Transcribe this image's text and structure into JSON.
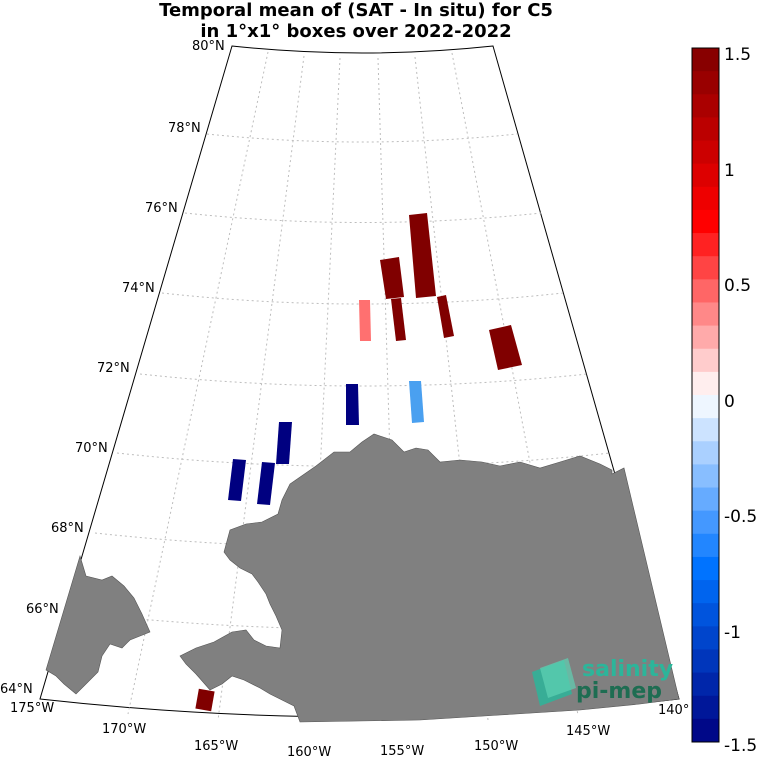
{
  "title": {
    "line1": "Temporal mean of (SAT - In situ) for C5",
    "line2": "in 1°x1° boxes over 2022-2022"
  },
  "lat_labels": [
    "80°N",
    "78°N",
    "76°N",
    "74°N",
    "72°N",
    "70°N",
    "68°N",
    "66°N",
    "64°N"
  ],
  "lon_labels": [
    "175°W",
    "170°W",
    "165°W",
    "160°W",
    "155°W",
    "150°W",
    "145°W",
    "140°"
  ],
  "colorbar": {
    "ticks": [
      "1.5",
      "1",
      "0.5",
      "0",
      "-0.5",
      "-1",
      "-1.5"
    ],
    "range": [
      -1.5,
      1.5
    ],
    "colormap": "blue-white-red"
  },
  "colors": {
    "land": "#808080",
    "strong_positive": "#800000",
    "mild_positive": "#ff7070",
    "strong_negative": "#000080",
    "mild_negative": "#4aa0f0"
  },
  "logo": {
    "line1": "salinity",
    "line2": "pi-mep"
  }
}
